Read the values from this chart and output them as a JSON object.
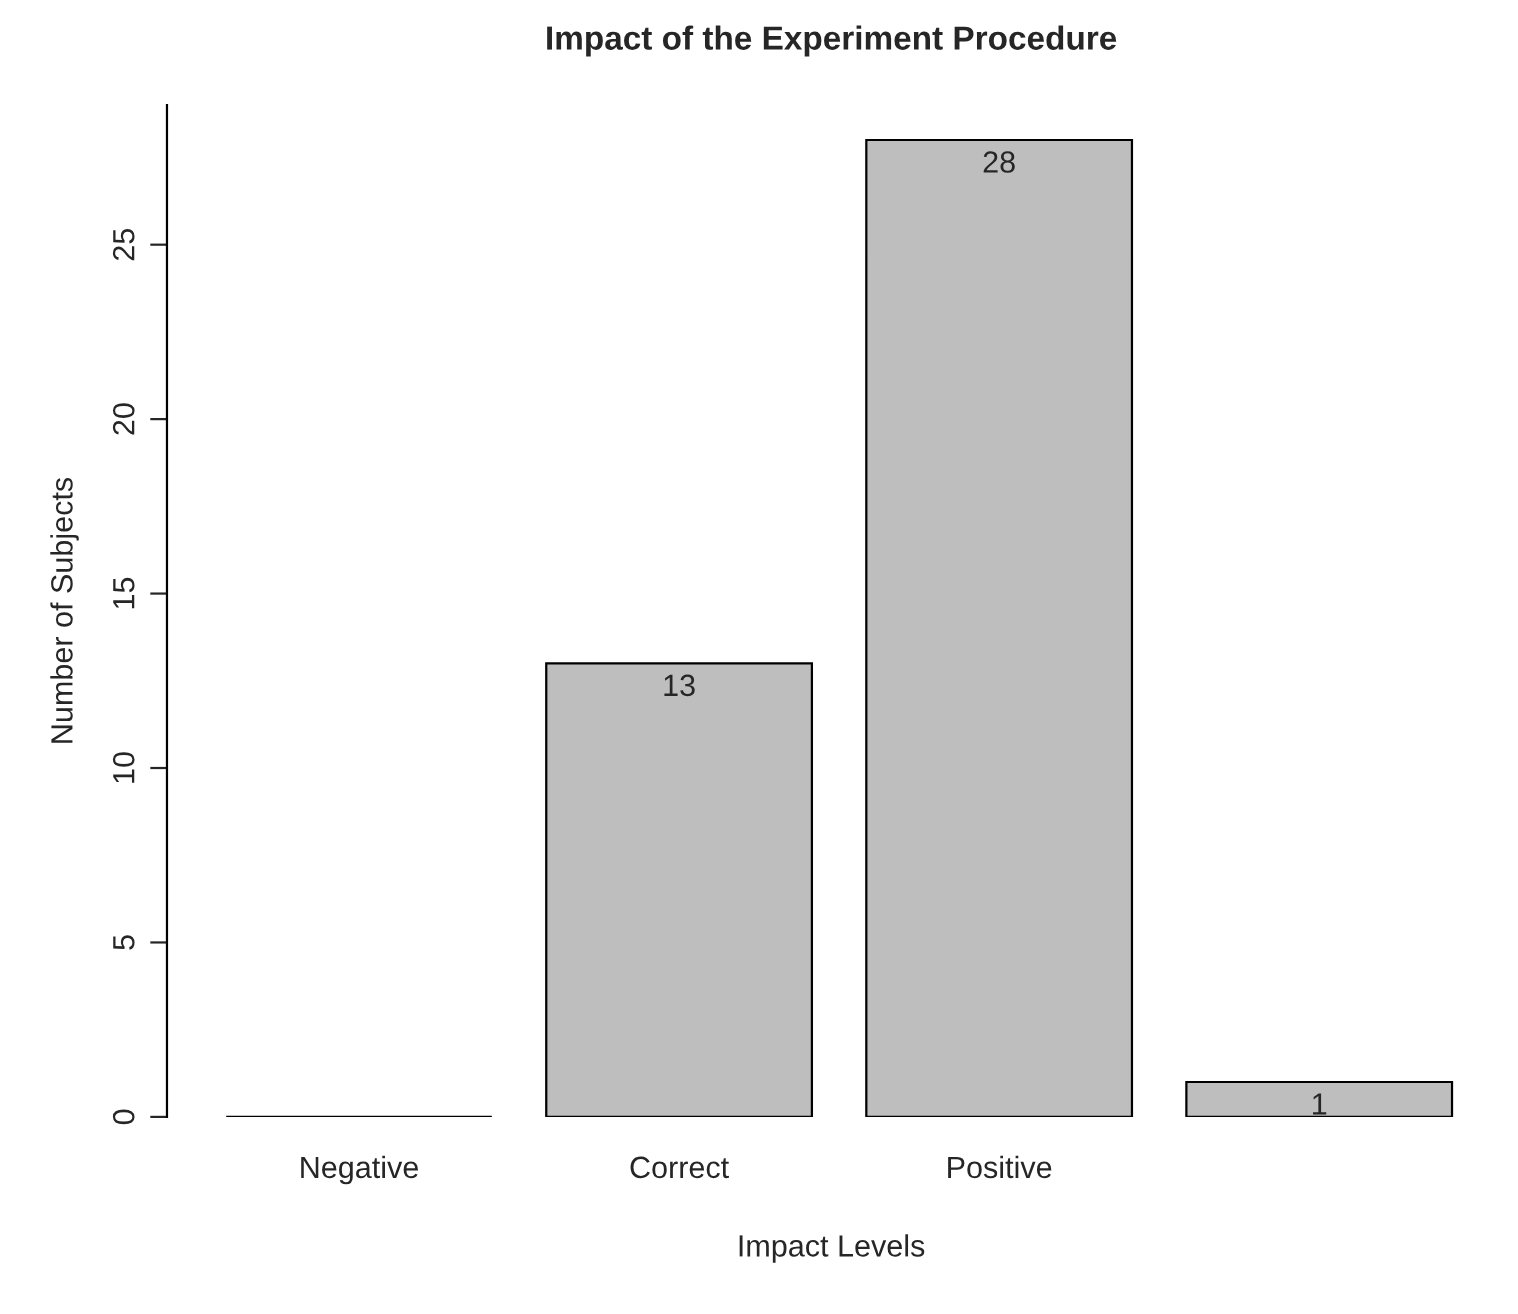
{
  "chart_data": {
    "type": "bar",
    "title": "Impact of the Experiment Procedure",
    "xlabel": "Impact Levels",
    "ylabel": "Number of Subjects",
    "categories": [
      "Negative",
      "Correct",
      "Positive",
      null
    ],
    "values": [
      0,
      13,
      28,
      1
    ],
    "colors": [
      "#000000",
      "#bebebe",
      "#bebebe",
      "#bebebe"
    ],
    "value_labels": [
      null,
      "13",
      "28",
      "1"
    ],
    "ylim": [
      0,
      29
    ],
    "yticks": [
      0,
      5,
      10,
      15,
      20,
      25
    ],
    "grid": false,
    "legend": false
  }
}
